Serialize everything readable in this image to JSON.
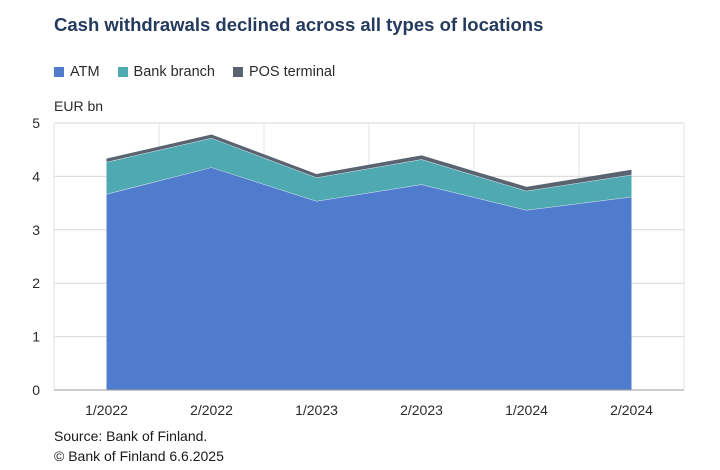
{
  "chart_data": {
    "type": "area",
    "stacked": true,
    "title": "Cash withdrawals declined across all types of locations",
    "unit_label": "EUR bn",
    "categories": [
      "1/2022",
      "2/2022",
      "1/2023",
      "2/2023",
      "1/2024",
      "2/2024"
    ],
    "series": [
      {
        "name": "ATM",
        "color": "#4f7ccc",
        "values": [
          3.67,
          4.17,
          3.54,
          3.85,
          3.37,
          3.62
        ]
      },
      {
        "name": "Bank branch",
        "color": "#4fa9b0",
        "values": [
          0.6,
          0.55,
          0.44,
          0.47,
          0.36,
          0.41
        ]
      },
      {
        "name": "POS terminal",
        "color": "#5a6470",
        "values": [
          0.05,
          0.05,
          0.05,
          0.06,
          0.06,
          0.08
        ]
      }
    ],
    "ylim": [
      0,
      5
    ],
    "yticks": [
      0,
      1,
      2,
      3,
      4,
      5
    ],
    "grid": true,
    "legend_position": "top-left"
  },
  "footer": {
    "source": "Source: Bank of Finland.",
    "copyright": "© Bank of Finland 6.6.2025"
  }
}
